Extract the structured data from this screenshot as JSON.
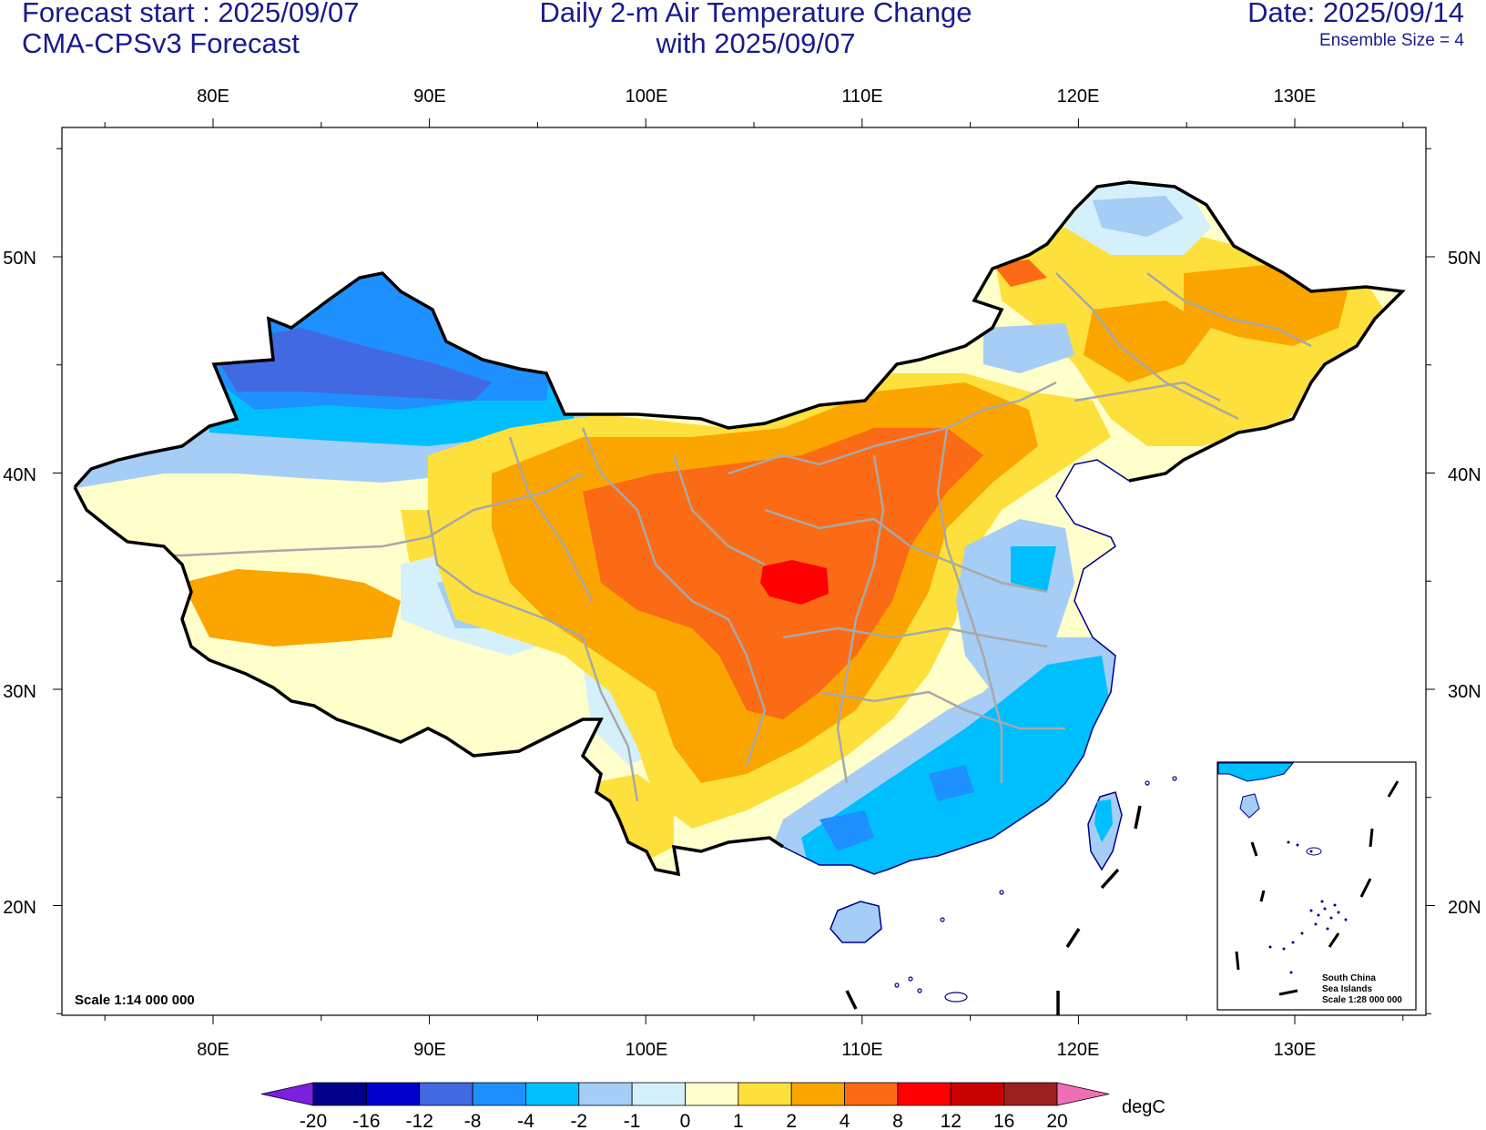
{
  "header": {
    "forecast_start": "Forecast start : 2025/09/07",
    "model": "CMA-CPSv3 Forecast",
    "title_line1": "Daily 2-m Air Temperature Change",
    "title_line2": "with 2025/09/07",
    "date": "Date: 2025/09/14",
    "ensemble": "Ensemble Size = 4"
  },
  "map": {
    "lon_ticks": [
      "80E",
      "90E",
      "100E",
      "110E",
      "120E",
      "130E"
    ],
    "lat_ticks": [
      "50N",
      "40N",
      "30N",
      "20N"
    ],
    "scale_label": "Scale 1:14 000 000",
    "inset": {
      "line1": "South China",
      "line2": "Sea Islands",
      "line3": "Scale 1:28 000 000"
    }
  },
  "colorbar": {
    "unit": "degC",
    "levels": [
      "-20",
      "-16",
      "-12",
      "-8",
      "-4",
      "-2",
      "-1",
      "0",
      "1",
      "2",
      "4",
      "8",
      "12",
      "16",
      "20"
    ],
    "colors": [
      "#7b1fe0",
      "#00008b",
      "#0000cd",
      "#4169e1",
      "#1e90ff",
      "#00bfff",
      "#a5cdf5",
      "#d4f0fa",
      "#ffffcc",
      "#fde03c",
      "#fba500",
      "#fb6a14",
      "#ff0000",
      "#c90000",
      "#9b2020",
      "#f06eb4"
    ]
  }
}
